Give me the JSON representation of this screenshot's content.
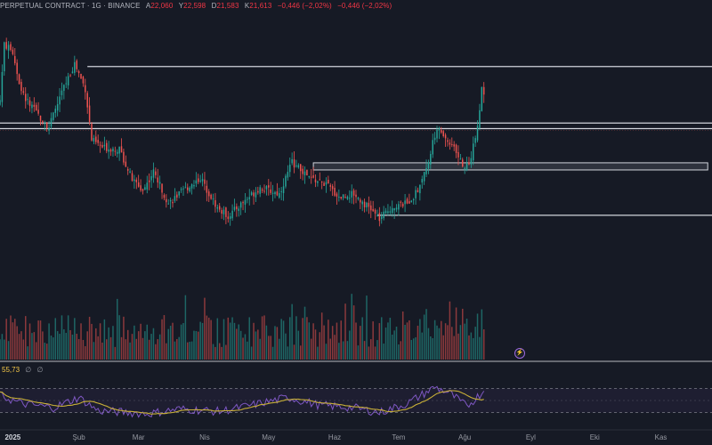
{
  "header": {
    "symbol": "PERPETUAL CONTRACT · 1G · BINANCE",
    "open_key": "A",
    "open": "22,060",
    "high_key": "Y",
    "high": "22,598",
    "low_key": "D",
    "low": "21,583",
    "close_key": "K",
    "close": "21,613",
    "change": "−0,446 (−2,02%)",
    "change_dup": "−0,446 (−2,02%)"
  },
  "rsi": {
    "value": "55,73",
    "na1": "∅",
    "na2": "∅"
  },
  "x_axis": [
    "2025",
    "Şub",
    "Mar",
    "Nis",
    "May",
    "Haz",
    "Tem",
    "Ağu",
    "Eyl",
    "Eki",
    "Kas"
  ],
  "colors": {
    "background": "#161a25",
    "up": "#26a69a",
    "down": "#ef5350",
    "rsi_line": "#7e57c2",
    "rsi_ma": "#c9b037",
    "level_line": "#d1d4dc"
  },
  "chart_data": {
    "type": "candlestick",
    "interval": "1D",
    "x_range": [
      "2024-12-26",
      "2025-11-25"
    ],
    "price_range": [
      13.0,
      29.0
    ],
    "price_anchors": [
      {
        "date": "2024-12-26",
        "price": 23.5
      },
      {
        "date": "2024-12-28",
        "price": 27.0
      },
      {
        "date": "2025-01-01",
        "price": 26.5
      },
      {
        "date": "2025-01-05",
        "price": 24.0
      },
      {
        "date": "2025-01-10",
        "price": 23.0
      },
      {
        "date": "2025-01-18",
        "price": 21.8
      },
      {
        "date": "2025-01-24",
        "price": 24.0
      },
      {
        "date": "2025-01-30",
        "price": 25.8
      },
      {
        "date": "2025-02-04",
        "price": 24.2
      },
      {
        "date": "2025-02-07",
        "price": 21.0
      },
      {
        "date": "2025-02-12",
        "price": 20.5
      },
      {
        "date": "2025-02-20",
        "price": 20.4
      },
      {
        "date": "2025-02-26",
        "price": 18.5
      },
      {
        "date": "2025-03-03",
        "price": 17.8
      },
      {
        "date": "2025-03-08",
        "price": 19.0
      },
      {
        "date": "2025-03-15",
        "price": 17.0
      },
      {
        "date": "2025-03-22",
        "price": 17.8
      },
      {
        "date": "2025-03-30",
        "price": 18.6
      },
      {
        "date": "2025-04-07",
        "price": 16.7
      },
      {
        "date": "2025-04-12",
        "price": 16.2
      },
      {
        "date": "2025-04-20",
        "price": 17.2
      },
      {
        "date": "2025-04-27",
        "price": 18.0
      },
      {
        "date": "2025-05-06",
        "price": 17.6
      },
      {
        "date": "2025-05-12",
        "price": 19.6
      },
      {
        "date": "2025-05-20",
        "price": 18.6
      },
      {
        "date": "2025-05-28",
        "price": 18.2
      },
      {
        "date": "2025-06-03",
        "price": 17.4
      },
      {
        "date": "2025-06-10",
        "price": 17.6
      },
      {
        "date": "2025-06-18",
        "price": 16.6
      },
      {
        "date": "2025-06-22",
        "price": 16.0
      },
      {
        "date": "2025-06-28",
        "price": 16.8
      },
      {
        "date": "2025-07-05",
        "price": 17.0
      },
      {
        "date": "2025-07-10",
        "price": 17.8
      },
      {
        "date": "2025-07-15",
        "price": 19.8
      },
      {
        "date": "2025-07-19",
        "price": 21.8
      },
      {
        "date": "2025-07-23",
        "price": 21.0
      },
      {
        "date": "2025-07-27",
        "price": 20.6
      },
      {
        "date": "2025-08-01",
        "price": 19.2
      },
      {
        "date": "2025-08-04",
        "price": 19.8
      },
      {
        "date": "2025-08-07",
        "price": 22.0
      },
      {
        "date": "2025-08-09",
        "price": 24.1
      },
      {
        "date": "2025-08-10",
        "price": 23.9
      }
    ],
    "horizontal_levels": [
      {
        "price": 25.6,
        "from": "2025-02-05",
        "to": "2025-11-25",
        "style": "line"
      },
      {
        "price": 22.05,
        "from": "2024-12-26",
        "to": "2025-11-25",
        "style": "line"
      },
      {
        "price": 21.7,
        "from": "2024-12-26",
        "to": "2025-11-25",
        "style": "line"
      },
      {
        "price_top": 19.55,
        "price_bottom": 19.1,
        "from": "2025-05-22",
        "to": "2025-11-23",
        "style": "zone"
      },
      {
        "price": 16.25,
        "from": "2025-06-21",
        "to": "2025-11-25",
        "style": "line"
      }
    ],
    "last_close": 21.613,
    "rsi_value": 55.73,
    "rsi_bands": [
      70,
      30
    ],
    "rsi_anchors": [
      {
        "date": "2024-12-26",
        "rsi": 58
      },
      {
        "date": "2025-01-05",
        "rsi": 45
      },
      {
        "date": "2025-01-20",
        "rsi": 38
      },
      {
        "date": "2025-02-01",
        "rsi": 55
      },
      {
        "date": "2025-02-10",
        "rsi": 33
      },
      {
        "date": "2025-02-25",
        "rsi": 30
      },
      {
        "date": "2025-03-05",
        "rsi": 28
      },
      {
        "date": "2025-03-20",
        "rsi": 36
      },
      {
        "date": "2025-04-08",
        "rsi": 32
      },
      {
        "date": "2025-04-20",
        "rsi": 40
      },
      {
        "date": "2025-05-10",
        "rsi": 55
      },
      {
        "date": "2025-05-25",
        "rsi": 42
      },
      {
        "date": "2025-06-10",
        "rsi": 38
      },
      {
        "date": "2025-06-22",
        "rsi": 30
      },
      {
        "date": "2025-07-05",
        "rsi": 45
      },
      {
        "date": "2025-07-18",
        "rsi": 72
      },
      {
        "date": "2025-07-25",
        "rsi": 62
      },
      {
        "date": "2025-08-02",
        "rsi": 40
      },
      {
        "date": "2025-08-10",
        "rsi": 66
      }
    ]
  }
}
